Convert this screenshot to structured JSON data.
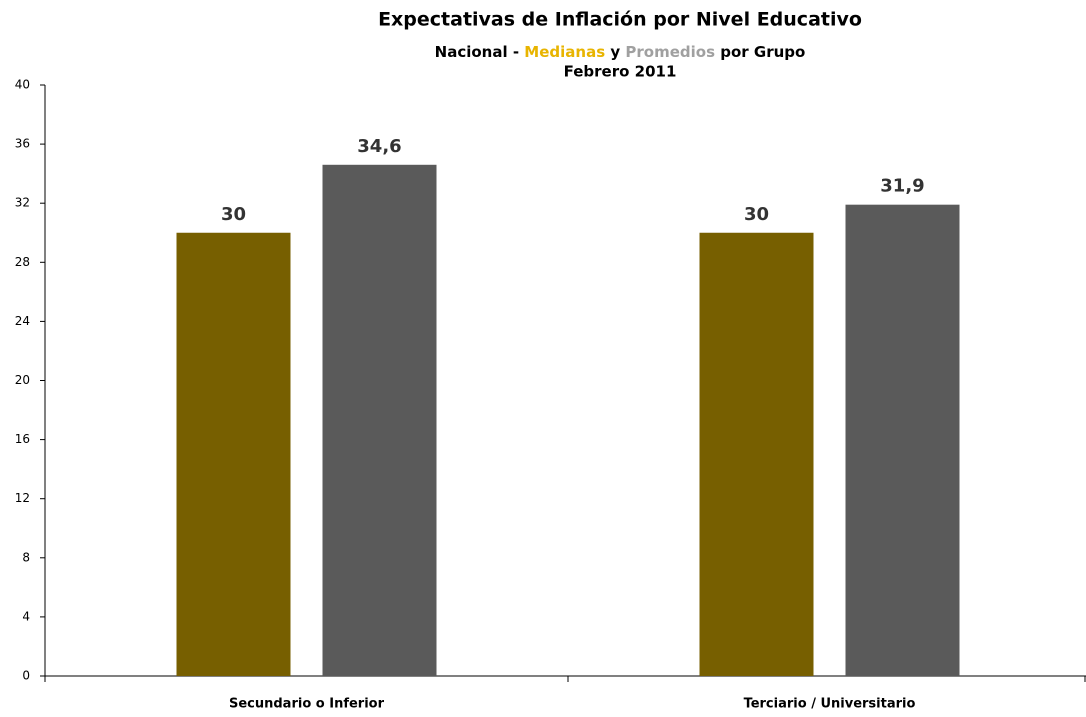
{
  "chart_data": {
    "type": "bar",
    "title": "Expectativas de Inflación por Nivel Educativo",
    "subtitle": [
      "Nacional -",
      "y",
      "por Grupo"
    ],
    "period": "Febrero 2011",
    "categories": [
      "Secundario o Inferior",
      "Terciario / Universitario"
    ],
    "series": [
      {
        "name": "Medianas",
        "color": "#775f00",
        "name_color": "#e8b400",
        "values": [
          30,
          30
        ]
      },
      {
        "name": "Promedios",
        "color": "#5a5a5a",
        "name_color": "#a0a0a0",
        "values": [
          34.6,
          31.9
        ],
        "value_labels": [
          "34,6",
          "31,9"
        ]
      }
    ],
    "ylim": [
      0,
      40
    ],
    "yticks": [
      0,
      4,
      8,
      12,
      16,
      20,
      24,
      28,
      32,
      36,
      40
    ],
    "grid": false
  }
}
